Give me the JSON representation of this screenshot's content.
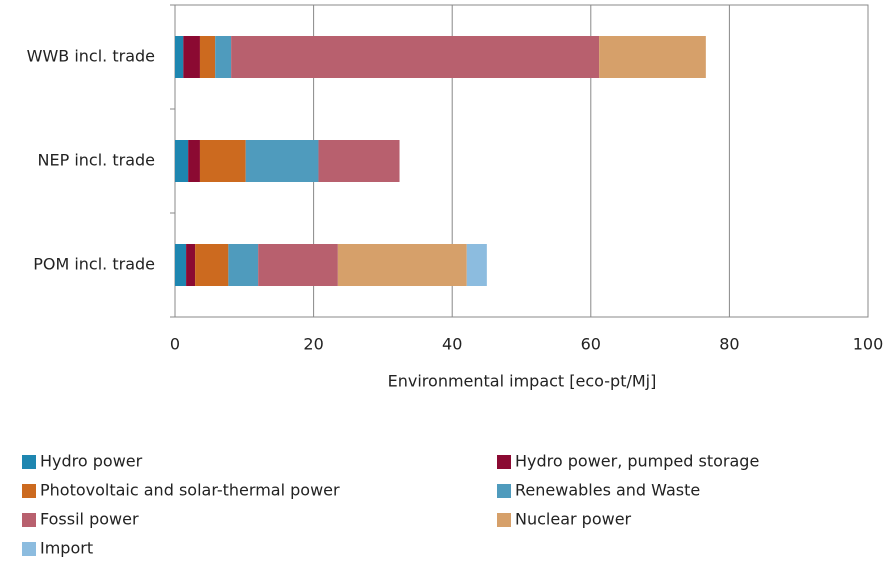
{
  "chart_data": {
    "type": "stacked_barh",
    "categories": [
      "WWB incl. trade",
      "NEP incl. trade",
      "POM incl. trade"
    ],
    "series": [
      {
        "name": "Hydro power",
        "color": "#1e86b0",
        "values": [
          1.2,
          1.9,
          1.6
        ]
      },
      {
        "name": "Hydro power, pumped storage",
        "color": "#8b0a32",
        "values": [
          2.4,
          1.7,
          1.3
        ]
      },
      {
        "name": "Photovoltaic and solar-thermal power",
        "color": "#cc6a1f",
        "values": [
          2.2,
          6.6,
          4.8
        ]
      },
      {
        "name": "Renewables and Waste",
        "color": "#4f9bbd",
        "values": [
          2.3,
          10.5,
          4.3
        ]
      },
      {
        "name": "Fossil power",
        "color": "#b8606e",
        "values": [
          53.1,
          11.7,
          11.5
        ]
      },
      {
        "name": "Nuclear power",
        "color": "#d6a06a",
        "values": [
          15.4,
          0,
          18.6
        ]
      },
      {
        "name": "Import",
        "color": "#8cbcdf",
        "values": [
          0,
          0,
          2.9
        ]
      }
    ],
    "x_label": "Environmental impact [eco-pt/Mj]",
    "xlim": [
      0,
      100
    ],
    "xticks": [
      0,
      20,
      40,
      60,
      80,
      100
    ],
    "grid": true
  }
}
